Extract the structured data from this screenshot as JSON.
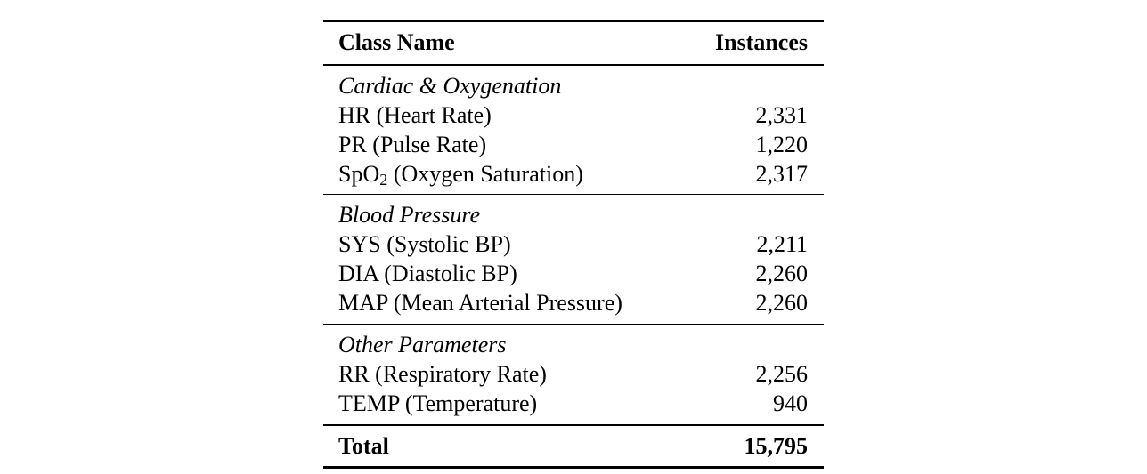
{
  "page": {
    "background_color": "#ffffff",
    "text_color": "#000000"
  },
  "table": {
    "columns": [
      "Class Name",
      "Instances"
    ],
    "sections": [
      {
        "label": "Cardiac & Oxygenation",
        "rows": [
          {
            "pre": "HR (Heart Rate)",
            "sub": "",
            "post": "",
            "instances": "2,331"
          },
          {
            "pre": "PR (Pulse Rate)",
            "sub": "",
            "post": "",
            "instances": "1,220"
          },
          {
            "pre": "SpO",
            "sub": "2",
            "post": " (Oxygen Saturation)",
            "instances": "2,317"
          }
        ]
      },
      {
        "label": "Blood Pressure",
        "rows": [
          {
            "pre": "SYS (Systolic BP)",
            "sub": "",
            "post": "",
            "instances": "2,211"
          },
          {
            "pre": "DIA (Diastolic BP)",
            "sub": "",
            "post": "",
            "instances": "2,260"
          },
          {
            "pre": "MAP (Mean Arterial Pressure)",
            "sub": "",
            "post": "",
            "instances": "2,260"
          }
        ]
      },
      {
        "label": "Other Parameters",
        "rows": [
          {
            "pre": "RR (Respiratory Rate)",
            "sub": "",
            "post": "",
            "instances": "2,256"
          },
          {
            "pre": "TEMP (Temperature)",
            "sub": "",
            "post": "",
            "instances": "940"
          }
        ]
      }
    ],
    "total": {
      "label": "Total",
      "value": "15,795"
    }
  }
}
